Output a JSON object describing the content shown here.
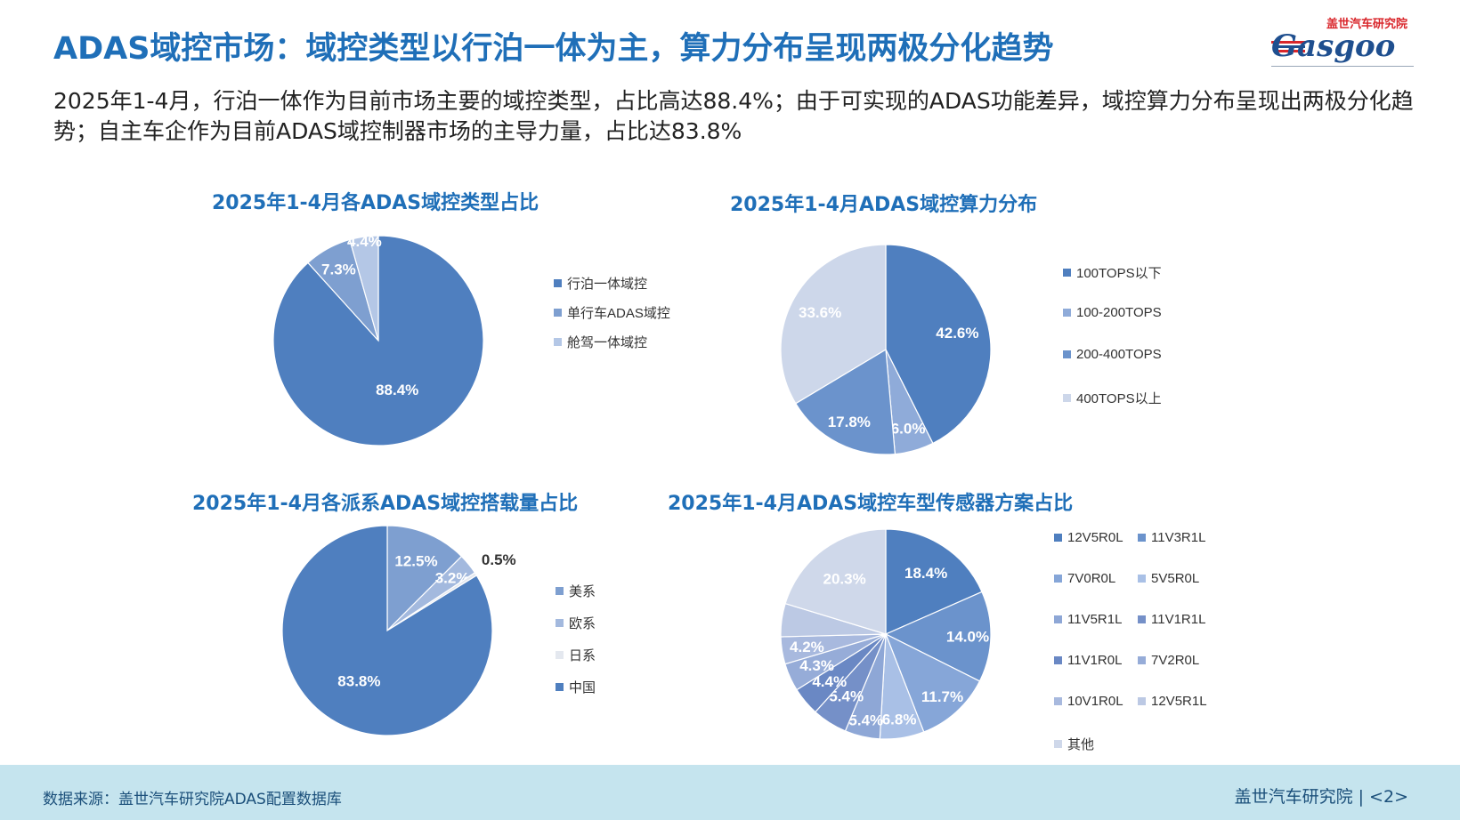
{
  "header": {
    "title": "ADAS域控市场：域控类型以行泊一体为主，算力分布呈现两极分化趋势",
    "logo_cn": "盖世汽车研究院",
    "logo_mark": "Gasgoo"
  },
  "summary": "2025年1-4月，行泊一体作为目前市场主要的域控类型，占比高达88.4%；由于可实现的ADAS功能差异，域控算力分布呈现出两极分化趋势；自主车企作为目前ADAS域控制器市场的主导力量，占比达83.8%",
  "footer": {
    "source": "数据来源：盖世汽车研究院ADAS配置数据库",
    "brand": "盖世汽车研究院 | <2>"
  },
  "chart_data": [
    {
      "type": "pie",
      "title": "2025年1-4月各ADAS域控类型占比",
      "categories": [
        "行泊一体域控",
        "单行车ADAS域控",
        "舱驾一体域控"
      ],
      "values": [
        88.4,
        7.3,
        4.4
      ],
      "labels": [
        "88.4%",
        "7.3%",
        "4.4%"
      ],
      "colors": [
        "#4f7fbf",
        "#7e9fd0",
        "#b4c7e6"
      ],
      "legend_position": "right"
    },
    {
      "type": "pie",
      "title": "2025年1-4月ADAS域控算力分布",
      "categories": [
        "100TOPS以下",
        "100-200TOPS",
        "200-400TOPS",
        "400TOPS以上"
      ],
      "values": [
        42.6,
        6.0,
        17.8,
        33.6
      ],
      "labels": [
        "42.6%",
        "6.0%",
        "17.8%",
        "33.6%"
      ],
      "colors": [
        "#4f7fbf",
        "#8fabd9",
        "#6b93cc",
        "#cdd7ea"
      ],
      "legend_position": "right"
    },
    {
      "type": "pie",
      "title": "2025年1-4月各派系ADAS域控搭载量占比",
      "categories": [
        "美系",
        "欧系",
        "日系",
        "中国"
      ],
      "values": [
        12.5,
        3.2,
        0.5,
        83.8
      ],
      "labels": [
        "12.5%",
        "3.2%",
        "0.5%",
        "83.8%"
      ],
      "colors": [
        "#7e9fd0",
        "#a3b9de",
        "#e4e8ef",
        "#4f7fbf"
      ],
      "legend_position": "right"
    },
    {
      "type": "pie",
      "title": "2025年1-4月ADAS域控车型传感器方案占比",
      "categories": [
        "12V5R0L",
        "11V3R1L",
        "7V0R0L",
        "5V5R0L",
        "11V5R1L",
        "11V1R1L",
        "11V1R0L",
        "7V2R0L",
        "10V1R0L",
        "12V5R1L",
        "其他"
      ],
      "values": [
        18.4,
        14.0,
        11.7,
        6.8,
        5.4,
        5.4,
        4.4,
        4.3,
        4.2,
        5.1,
        20.3
      ],
      "labels": [
        "18.4%",
        "14.0%",
        "11.7%",
        "6.8%",
        "5.4%",
        "5.4%",
        "4.4%",
        "4.3%",
        "4.2%",
        "",
        "20.3%"
      ],
      "colors": [
        "#4f7fbf",
        "#6b93cc",
        "#86a6d8",
        "#a9c0e6",
        "#8ea7d6",
        "#7590c8",
        "#6a88c4",
        "#96acd8",
        "#a8b9de",
        "#bcc9e4",
        "#cfd8ea"
      ],
      "legend_position": "right"
    }
  ]
}
